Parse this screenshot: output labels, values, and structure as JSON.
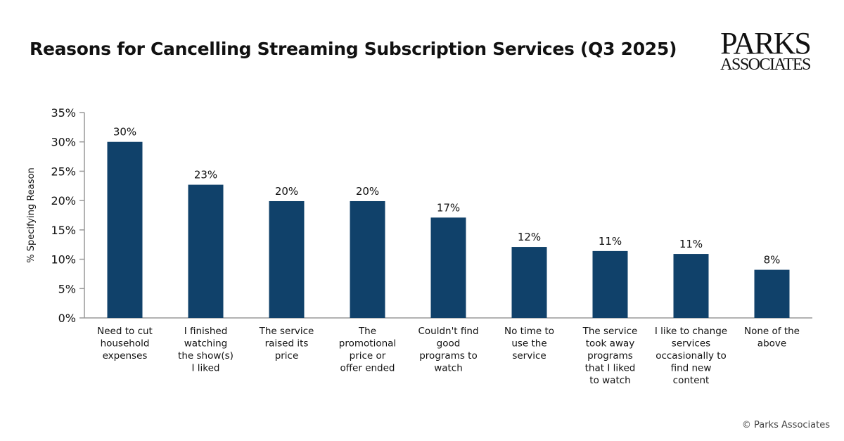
{
  "chart_data": {
    "type": "bar",
    "title": "Reasons for Cancelling Streaming Subscription Services (Q3 2025)",
    "xlabel": "",
    "ylabel": "% Specifying Reason",
    "ylim": [
      0,
      35
    ],
    "yticks": [
      "0%",
      "5%",
      "10%",
      "15%",
      "20%",
      "25%",
      "30%",
      "35%"
    ],
    "grid": false,
    "bar_color": "#10416a",
    "categories": [
      [
        "Need to cut",
        "household",
        "expenses"
      ],
      [
        "I finished",
        "watching",
        "the show(s)",
        "I liked"
      ],
      [
        "The service",
        "raised its",
        "price"
      ],
      [
        "The",
        "promotional",
        "price or",
        "offer ended"
      ],
      [
        "Couldn't find",
        "good",
        "programs to",
        "watch"
      ],
      [
        "No time to",
        "use the",
        "service"
      ],
      [
        "The service",
        "took away",
        "programs",
        "that I liked",
        "to watch"
      ],
      [
        "I like to change",
        "services",
        "occasionally to",
        "find new",
        "content"
      ],
      [
        "None of the",
        "above"
      ]
    ],
    "values": [
      30.0,
      22.7,
      19.9,
      19.9,
      17.1,
      12.1,
      11.4,
      10.9,
      8.2
    ],
    "data_labels": [
      "30%",
      "23%",
      "20%",
      "20%",
      "17%",
      "12%",
      "11%",
      "11%",
      "8%"
    ]
  },
  "logo": {
    "line1": "PARKS",
    "line2": "ASSOCIATES"
  },
  "copyright": "© Parks Associates"
}
